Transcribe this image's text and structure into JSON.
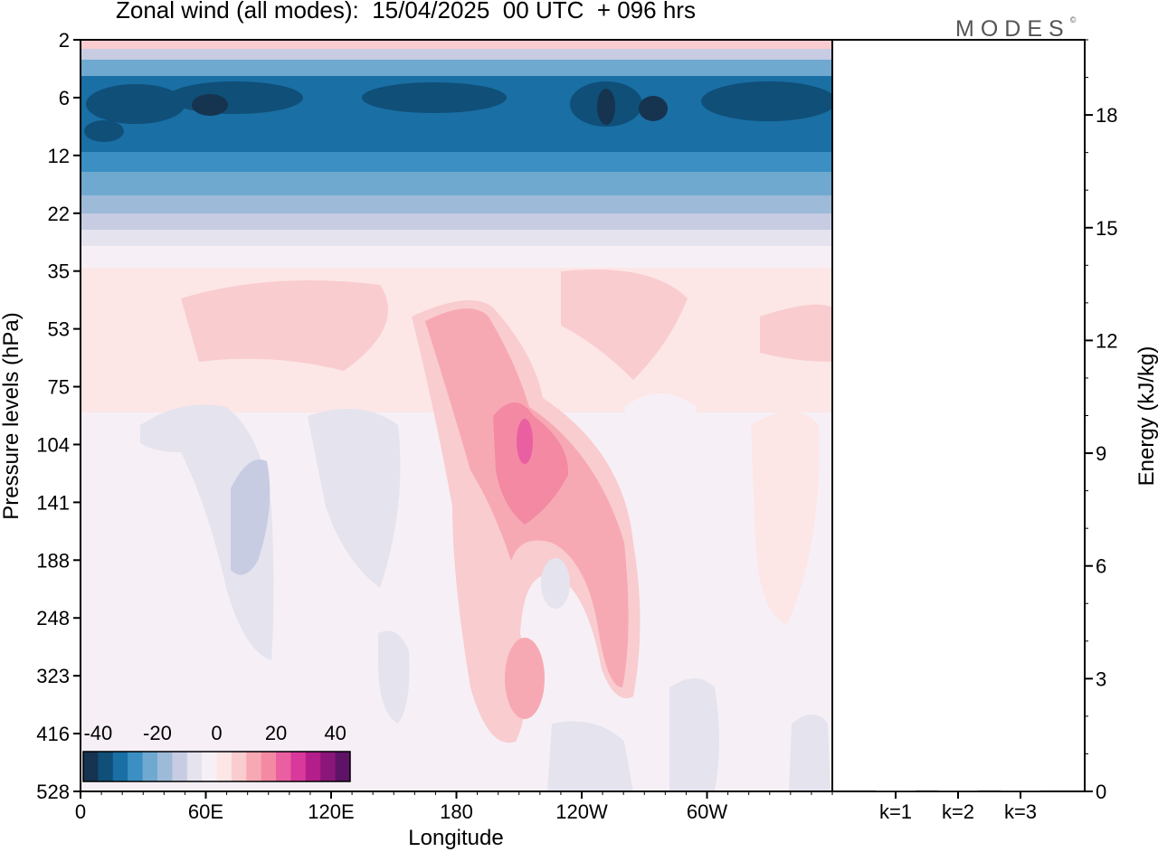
{
  "title": "Zonal wind (all modes):  15/04/2025  00 UTC  + 096 hrs",
  "brand": "MODES",
  "brand_mark": "©",
  "chart_data": [
    {
      "type": "heatmap",
      "xlabel": "Longitude",
      "ylabel": "Pressure levels (hPa)",
      "x_ticks": [
        "0",
        "60E",
        "120E",
        "180",
        "120W",
        "60W"
      ],
      "y_ticks": [
        "2",
        "6",
        "12",
        "22",
        "35",
        "53",
        "75",
        "104",
        "141",
        "188",
        "248",
        "323",
        "416",
        "528"
      ],
      "y_scale": "non-uniform (model levels)",
      "colorbar": {
        "labels": [
          "-40",
          "-20",
          "0",
          "20",
          "40"
        ],
        "placement": "bottom-left",
        "colors": [
          "#16334f",
          "#0f4f78",
          "#1a6fa4",
          "#3b8fc2",
          "#6fa9d0",
          "#9dbad9",
          "#c7cce2",
          "#e4e3ee",
          "#f6f0f6",
          "#fde6e6",
          "#f9cccf",
          "#f7a9b3",
          "#f389a3",
          "#ea5fa1",
          "#d9399a",
          "#b41e8a",
          "#8a1679",
          "#5e1366"
        ],
        "range": [
          -45,
          45
        ]
      }
    },
    {
      "type": "bar",
      "ylabel": "Energy (kJ/kg)",
      "categories": [
        "k=1",
        "k=2",
        "k=3"
      ],
      "values": [
        0.02,
        0.01,
        0.01
      ],
      "ylim": [
        0,
        20
      ],
      "y_ticks": [
        "0",
        "3",
        "6",
        "9",
        "12",
        "15",
        "18"
      ]
    }
  ]
}
